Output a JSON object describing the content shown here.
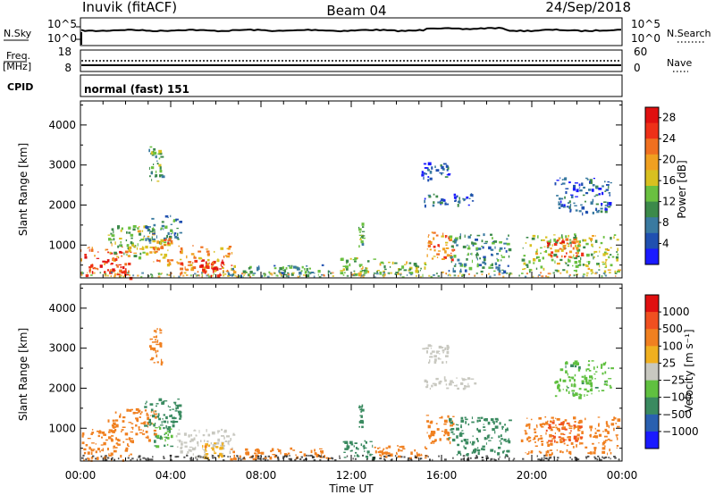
{
  "header": {
    "station": "Inuvik (fitACF)",
    "beam": "Beam 04",
    "date": "24/Sep/2018"
  },
  "noise_panel": {
    "left_label": "N.Sky",
    "right_label": "N.Search",
    "left_ticks": [
      "10^5",
      "10^0"
    ],
    "right_ticks": [
      "10^5",
      "10^0"
    ]
  },
  "freq_panel": {
    "left_label_1": "Freq.",
    "left_label_2": "[MHz]",
    "right_label": "Nave",
    "left_ticks": [
      "18",
      "8"
    ],
    "right_ticks": [
      "60",
      "0"
    ]
  },
  "cpid_panel": {
    "label": "CPID",
    "value": "normal (fast) 151"
  },
  "chart_data": [
    {
      "type": "heatmap",
      "name": "power",
      "ylabel": "Slant Range [km]",
      "ylim": [
        180,
        4600
      ],
      "yticks": [
        "1000",
        "2000",
        "3000",
        "4000"
      ],
      "ytick_values": [
        1000,
        2000,
        3000,
        4000
      ],
      "xlim": [
        "00:00",
        "24:00"
      ],
      "colorbar": {
        "label": "Power [dB]",
        "ticks": [
          "4",
          "8",
          "12",
          "16",
          "20",
          "24",
          "28"
        ],
        "range": [
          0,
          30
        ],
        "colors": [
          "#1a1aff",
          "#2050b0",
          "#3a7aa0",
          "#3c8a4a",
          "#6ac040",
          "#d8c020",
          "#f0a020",
          "#f07020",
          "#ee3018",
          "#e01010"
        ]
      },
      "echo_regions": [
        {
          "t0": 0.0,
          "t1": 2.2,
          "r0": 200,
          "r1": 1000,
          "level": 24
        },
        {
          "t0": 1.2,
          "t1": 3.3,
          "r0": 700,
          "r1": 1500,
          "level": 14
        },
        {
          "t0": 2.8,
          "t1": 4.4,
          "r0": 1050,
          "r1": 1750,
          "level": 8
        },
        {
          "t0": 3.2,
          "t1": 4.0,
          "r0": 500,
          "r1": 1200,
          "level": 20
        },
        {
          "t0": 3.0,
          "t1": 3.6,
          "r0": 2600,
          "r1": 3500,
          "level": 12
        },
        {
          "t0": 4.2,
          "t1": 6.8,
          "r0": 300,
          "r1": 1000,
          "level": 20
        },
        {
          "t0": 5.3,
          "t1": 6.3,
          "r0": 250,
          "r1": 650,
          "level": 28
        },
        {
          "t0": 6.5,
          "t1": 11.0,
          "r0": 250,
          "r1": 520,
          "level": 10
        },
        {
          "t0": 11.5,
          "t1": 13.0,
          "r0": 260,
          "r1": 700,
          "level": 14
        },
        {
          "t0": 13.0,
          "t1": 15.3,
          "r0": 260,
          "r1": 600,
          "level": 14
        },
        {
          "t0": 15.3,
          "t1": 16.5,
          "r0": 650,
          "r1": 1350,
          "level": 22
        },
        {
          "t0": 16.3,
          "t1": 19.0,
          "r0": 350,
          "r1": 1300,
          "level": 10
        },
        {
          "t0": 15.2,
          "t1": 17.5,
          "r0": 2000,
          "r1": 2300,
          "level": 6
        },
        {
          "t0": 15.1,
          "t1": 16.3,
          "r0": 2650,
          "r1": 3100,
          "level": 5
        },
        {
          "t0": 19.5,
          "t1": 23.8,
          "r0": 350,
          "r1": 1300,
          "level": 14
        },
        {
          "t0": 20.6,
          "t1": 22.2,
          "r0": 700,
          "r1": 1200,
          "level": 24
        },
        {
          "t0": 21.0,
          "t1": 23.5,
          "r0": 1800,
          "r1": 2700,
          "level": 6
        },
        {
          "t0": 12.3,
          "t1": 12.5,
          "r0": 1000,
          "r1": 1600,
          "level": 12
        }
      ]
    },
    {
      "type": "heatmap",
      "name": "velocity",
      "ylabel": "Slant Range [km]",
      "ylim": [
        180,
        4600
      ],
      "yticks": [
        "1000",
        "2000",
        "3000",
        "4000"
      ],
      "ytick_values": [
        1000,
        2000,
        3000,
        4000
      ],
      "xlabel": "Time UT",
      "xticks": [
        "00:00",
        "04:00",
        "08:00",
        "12:00",
        "16:00",
        "20:00",
        "00:00"
      ],
      "xtick_hours": [
        0,
        4,
        8,
        12,
        16,
        20,
        24
      ],
      "colorbar": {
        "label": "Velocity [m s⁻¹]",
        "ticks": [
          "1000",
          "500",
          "100",
          "25",
          "−25",
          "−100",
          "−500",
          "−1000"
        ],
        "colors": [
          "#1a1aff",
          "#2a60b0",
          "#3a8a60",
          "#60c040",
          "#c8c8c0",
          "#f0b020",
          "#f08020",
          "#f05020",
          "#e01010"
        ]
      },
      "echo_regions": [
        {
          "t0": 0.0,
          "t1": 2.2,
          "r0": 200,
          "r1": 1000,
          "level": -300
        },
        {
          "t0": 1.2,
          "t1": 3.3,
          "r0": 700,
          "r1": 1500,
          "level": -200
        },
        {
          "t0": 2.8,
          "t1": 4.4,
          "r0": 1050,
          "r1": 1750,
          "level": 300
        },
        {
          "t0": 3.2,
          "t1": 4.0,
          "r0": 500,
          "r1": 1200,
          "level": 100
        },
        {
          "t0": 3.0,
          "t1": 3.6,
          "r0": 2600,
          "r1": 3500,
          "level": -150
        },
        {
          "t0": 4.2,
          "t1": 6.8,
          "r0": 300,
          "r1": 1000,
          "level": 0
        },
        {
          "t0": 5.3,
          "t1": 6.3,
          "r0": 250,
          "r1": 650,
          "level": -80
        },
        {
          "t0": 6.5,
          "t1": 11.0,
          "r0": 250,
          "r1": 520,
          "level": -150
        },
        {
          "t0": 11.5,
          "t1": 13.0,
          "r0": 260,
          "r1": 700,
          "level": 300
        },
        {
          "t0": 13.0,
          "t1": 15.3,
          "r0": 260,
          "r1": 600,
          "level": -150
        },
        {
          "t0": 15.3,
          "t1": 16.5,
          "r0": 650,
          "r1": 1350,
          "level": -250
        },
        {
          "t0": 16.3,
          "t1": 19.0,
          "r0": 350,
          "r1": 1300,
          "level": 150
        },
        {
          "t0": 15.2,
          "t1": 17.5,
          "r0": 2000,
          "r1": 2300,
          "level": 0
        },
        {
          "t0": 15.1,
          "t1": 16.3,
          "r0": 2650,
          "r1": 3100,
          "level": 0
        },
        {
          "t0": 19.5,
          "t1": 23.8,
          "r0": 350,
          "r1": 1300,
          "level": -250
        },
        {
          "t0": 20.6,
          "t1": 22.2,
          "r0": 700,
          "r1": 1200,
          "level": -500
        },
        {
          "t0": 21.0,
          "t1": 23.5,
          "r0": 1800,
          "r1": 2700,
          "level": 80
        },
        {
          "t0": 12.3,
          "t1": 12.5,
          "r0": 1000,
          "r1": 1600,
          "level": 300
        }
      ]
    }
  ]
}
